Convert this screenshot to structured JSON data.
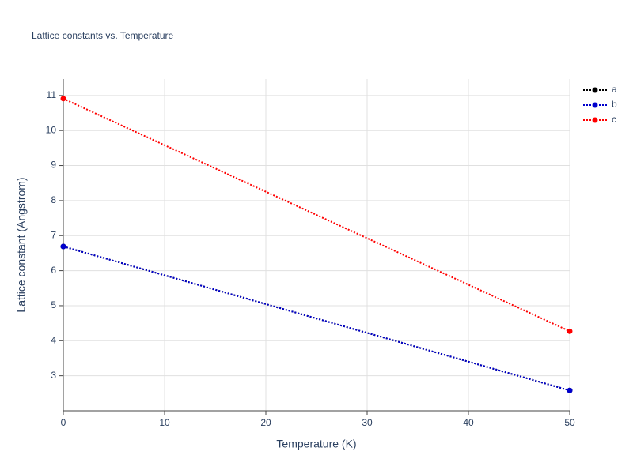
{
  "chart_data": {
    "type": "line",
    "title": "Lattice constants vs. Temperature",
    "x_label": "Temperature (K)",
    "y_label": "Lattice constant (Angstrom)",
    "x": [
      0,
      50
    ],
    "series": [
      {
        "name": "a",
        "color": "#000000",
        "values": [
          6.69,
          2.58
        ]
      },
      {
        "name": "b",
        "color": "#0000cc",
        "values": [
          6.69,
          2.58
        ]
      },
      {
        "name": "c",
        "color": "#ff0000",
        "values": [
          10.91,
          4.27
        ]
      }
    ],
    "xlim": [
      0,
      50
    ],
    "xticks": [
      0,
      10,
      20,
      30,
      40,
      50
    ],
    "ylim": [
      2.0,
      11.47
    ],
    "yticks": [
      3,
      4,
      5,
      6,
      7,
      8,
      9,
      10,
      11
    ],
    "grid": true,
    "legend": "top-right"
  }
}
